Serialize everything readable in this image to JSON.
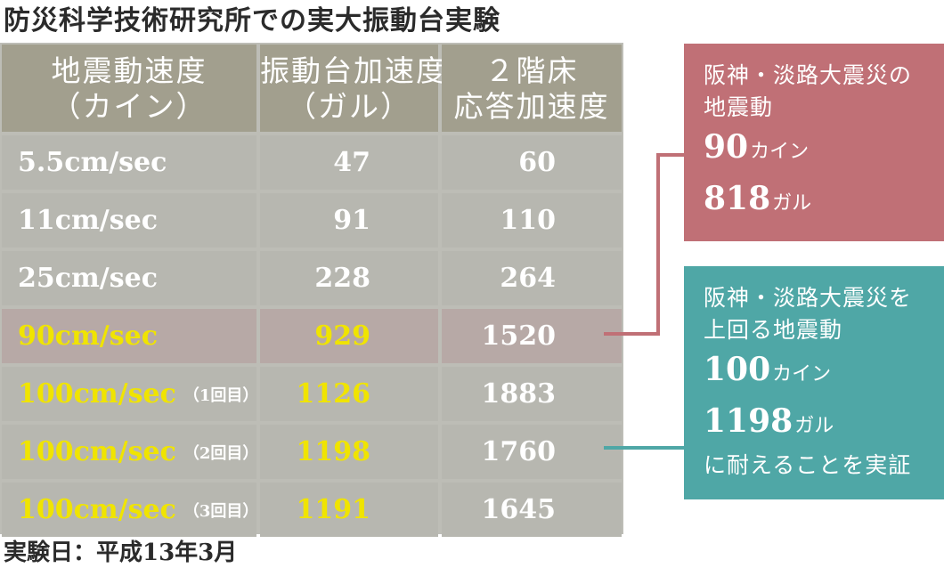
{
  "title": "防災科学技術研究所での実大振動台実験",
  "footer": "実験日：平成13年3月",
  "table": {
    "headers": [
      {
        "line1": "地震動速度",
        "line2": "（カイン）"
      },
      {
        "line1": "振動台加速度",
        "line2": "（ガル）"
      },
      {
        "line1": "２階床",
        "line2": "応答加速度"
      }
    ],
    "rows": [
      {
        "speed": "5.5cm/sec",
        "note": "",
        "table_accel": "47",
        "floor_accel": "60",
        "style": "normal"
      },
      {
        "speed": "11cm/sec",
        "note": "",
        "table_accel": "91",
        "floor_accel": "110",
        "style": "normal"
      },
      {
        "speed": "25cm/sec",
        "note": "",
        "table_accel": "228",
        "floor_accel": "264",
        "style": "normal"
      },
      {
        "speed": "90cm/sec",
        "note": "",
        "table_accel": "929",
        "floor_accel": "1520",
        "style": "highlight"
      },
      {
        "speed": "100cm/sec",
        "note": "（1回目）",
        "table_accel": "1126",
        "floor_accel": "1883",
        "style": "yellow"
      },
      {
        "speed": "100cm/sec",
        "note": "（2回目）",
        "table_accel": "1198",
        "floor_accel": "1760",
        "style": "yellow"
      },
      {
        "speed": "100cm/sec",
        "note": "（3回目）",
        "table_accel": "1191",
        "floor_accel": "1645",
        "style": "yellow"
      }
    ]
  },
  "callouts": {
    "hanshin": {
      "line1": "阪神・淡路大震災の",
      "line2": "地震動",
      "kine_value": "90",
      "kine_unit": "カイン",
      "gal_value": "818",
      "gal_unit": "ガル",
      "color": "#c07076"
    },
    "exceed": {
      "line1": "阪神・淡路大震災を",
      "line2": "上回る地震動",
      "kine_value": "100",
      "kine_unit": "カイン",
      "gal_value": "1198",
      "gal_unit": "ガル",
      "line3": "に耐えることを実証",
      "color": "#4fa7a6"
    }
  },
  "colors": {
    "header_bg": "#a29f8e",
    "cell_bg": "#b7b7b0",
    "highlight_row_bg": "#b7a9a6",
    "yellow_text": "#f0e400"
  }
}
